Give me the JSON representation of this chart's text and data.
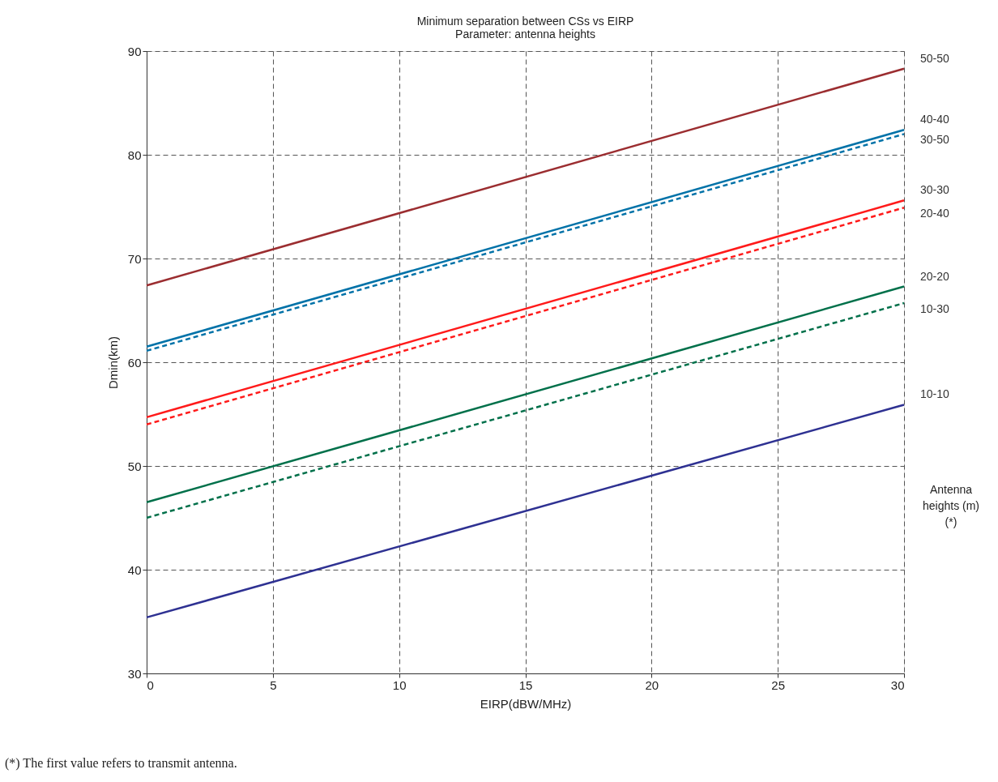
{
  "chart_data": {
    "type": "line",
    "title": "Minimum separation between CSs vs EIRP",
    "subtitle": "Parameter: antenna heights",
    "xlabel": "EIRP(dBW/MHz)",
    "ylabel": "Dmin(km)",
    "x": [
      0,
      30
    ],
    "series": [
      {
        "name": "50-50",
        "color": "#9b2d30",
        "line_style": "solid",
        "values": [
          67.4,
          88.3
        ]
      },
      {
        "name": "40-40",
        "color": "#0072a8",
        "line_style": "solid",
        "values": [
          61.5,
          82.4
        ]
      },
      {
        "name": "30-50",
        "color": "#0072a8",
        "line_style": "dashed",
        "values": [
          61.1,
          82.0
        ]
      },
      {
        "name": "30-30",
        "color": "#ff1a1a",
        "line_style": "solid",
        "values": [
          54.7,
          75.6
        ]
      },
      {
        "name": "20-40",
        "color": "#ff1a1a",
        "line_style": "dashed",
        "values": [
          54.0,
          74.9
        ]
      },
      {
        "name": "20-20",
        "color": "#00704a",
        "line_style": "solid",
        "values": [
          46.5,
          67.3
        ]
      },
      {
        "name": "10-30",
        "color": "#00704a",
        "line_style": "dashed",
        "values": [
          45.0,
          65.7
        ]
      },
      {
        "name": "10-10",
        "color": "#2e3192",
        "line_style": "solid",
        "values": [
          35.4,
          55.9
        ]
      }
    ],
    "xlim": [
      0,
      30
    ],
    "xticks": [
      0,
      5,
      10,
      15,
      20,
      25,
      30
    ],
    "ylim": [
      30,
      90
    ],
    "yticks": [
      30,
      40,
      50,
      60,
      70,
      80,
      90
    ],
    "grid": true,
    "annotations": [
      "Antenna\nheights (m)\n(*)",
      "(*) The first value refers to transmit antenna."
    ]
  }
}
